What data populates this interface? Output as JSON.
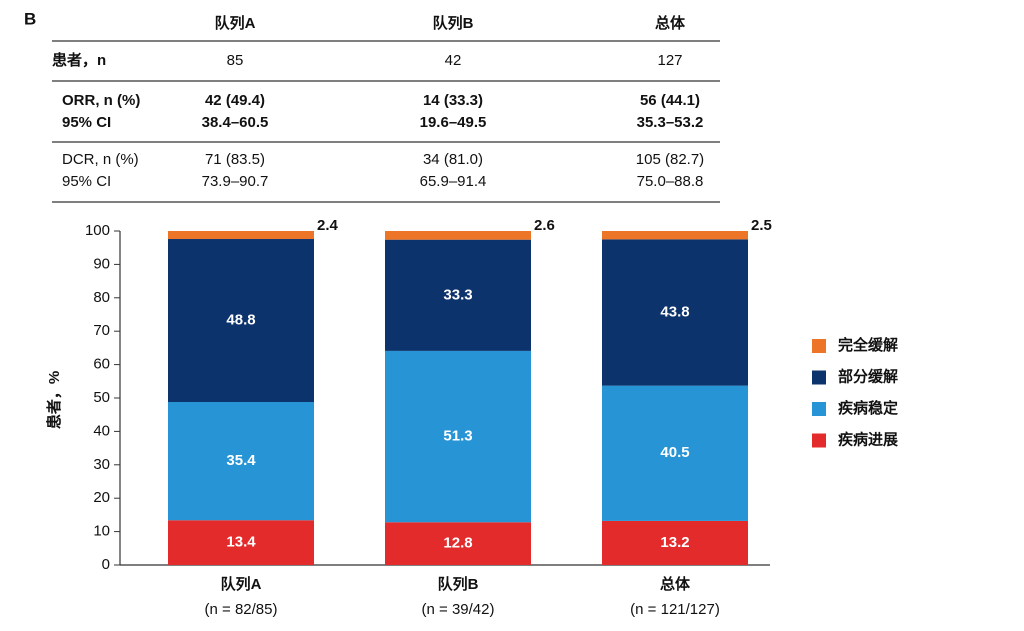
{
  "panel_label": "B",
  "table": {
    "header": [
      "队列A",
      "队列B",
      "总体"
    ],
    "rows": [
      [
        "患者，n",
        "85",
        "42",
        "127"
      ],
      [
        "ORR, n (%)",
        "42 (49.4)",
        "14 (33.3)",
        "56 (44.1)"
      ],
      [
        "95% CI",
        "38.4–60.5",
        "19.6–49.5",
        "35.3–53.2"
      ],
      [
        "DCR, n (%)",
        "71 (83.5)",
        "34 (81.0)",
        "105 (82.7)"
      ],
      [
        "95% CI",
        "73.9–90.7",
        "65.9–91.4",
        "75.0–88.8"
      ]
    ]
  },
  "chart_data": {
    "type": "stacked_bar",
    "ylabel": "患者，%",
    "categories": [
      "队列A",
      "队列B",
      "总体"
    ],
    "category_sublabels": [
      "(n = 82/85)",
      "(n = 39/42)",
      "(n = 121/127)"
    ],
    "series": [
      {
        "name": "疾病进展",
        "color": "#e32b2b",
        "values": [
          13.4,
          12.8,
          13.2
        ]
      },
      {
        "name": "疾病稳定",
        "color": "#2795d5",
        "values": [
          35.4,
          51.3,
          40.5
        ]
      },
      {
        "name": "部分缓解",
        "color": "#0c336c",
        "values": [
          48.8,
          33.3,
          43.8
        ]
      },
      {
        "name": "完全缓解",
        "color": "#ed7528",
        "values": [
          2.4,
          2.6,
          2.5
        ]
      }
    ],
    "ylim": [
      0,
      100
    ],
    "yticks": [
      0,
      10,
      20,
      30,
      40,
      50,
      60,
      70,
      80,
      90,
      100
    ],
    "grid": false,
    "legend": "right"
  }
}
